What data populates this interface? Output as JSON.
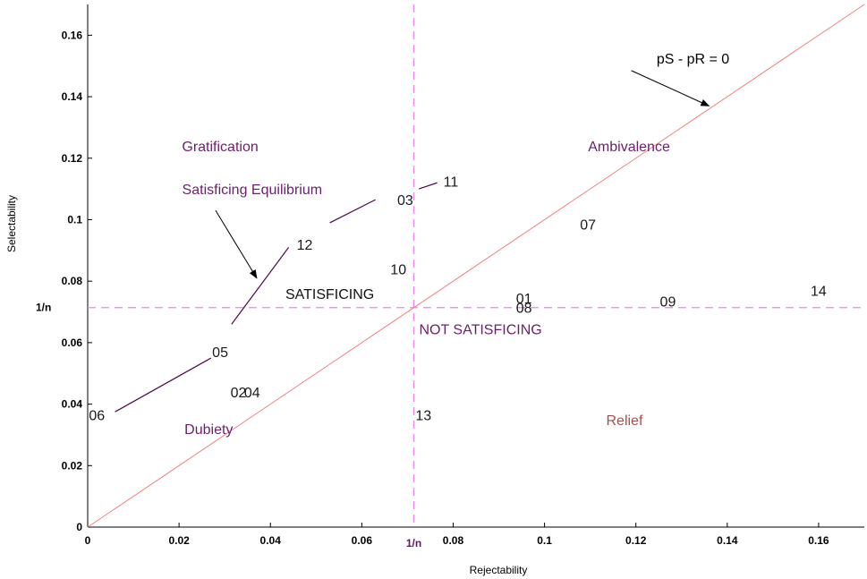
{
  "chart_data": {
    "type": "scatter",
    "xlabel": "Rejectability",
    "ylabel": "Selectability",
    "xlim": [
      0,
      0.17
    ],
    "ylim": [
      0,
      0.17
    ],
    "x_ticks": [
      "0",
      "0.02",
      "0.04",
      "0.06",
      "0.08",
      "0.1",
      "0.12",
      "0.14",
      "0.16"
    ],
    "y_ticks": [
      "0",
      "0.02",
      "0.04",
      "0.06",
      "0.08",
      "0.1",
      "0.12",
      "0.14",
      "0.16"
    ],
    "inverse_n_value": 0.0714,
    "inverse_n_label": "1/n",
    "points": [
      {
        "label": "01",
        "x": 0.0955,
        "y": 0.0745
      },
      {
        "label": "02",
        "x": 0.033,
        "y": 0.044
      },
      {
        "label": "03",
        "x": 0.0695,
        "y": 0.1065
      },
      {
        "label": "04",
        "x": 0.036,
        "y": 0.044
      },
      {
        "label": "05",
        "x": 0.029,
        "y": 0.057
      },
      {
        "label": "06",
        "x": 0.002,
        "y": 0.0365
      },
      {
        "label": "07",
        "x": 0.1095,
        "y": 0.0985
      },
      {
        "label": "08",
        "x": 0.0955,
        "y": 0.0715
      },
      {
        "label": "09",
        "x": 0.127,
        "y": 0.0735
      },
      {
        "label": "10",
        "x": 0.068,
        "y": 0.084
      },
      {
        "label": "11",
        "x": 0.0795,
        "y": 0.1125
      },
      {
        "label": "12",
        "x": 0.0475,
        "y": 0.092
      },
      {
        "label": "13",
        "x": 0.0735,
        "y": 0.0365
      },
      {
        "label": "14",
        "x": 0.16,
        "y": 0.077
      }
    ],
    "connector_segments": [
      {
        "x1": 0.006,
        "y1": 0.0375,
        "x2": 0.027,
        "y2": 0.055
      },
      {
        "x1": 0.0315,
        "y1": 0.066,
        "x2": 0.044,
        "y2": 0.091
      },
      {
        "x1": 0.053,
        "y1": 0.099,
        "x2": 0.063,
        "y2": 0.1065
      },
      {
        "x1": 0.0725,
        "y1": 0.11,
        "x2": 0.0765,
        "y2": 0.112
      }
    ],
    "diagonal_label": "pS - pR = 0",
    "region_labels": [
      {
        "text": "Gratification",
        "x": 0.029,
        "y": 0.124,
        "color": "#6b1f6b"
      },
      {
        "text": "Ambivalence",
        "x": 0.1185,
        "y": 0.124,
        "color": "#6b1f6b"
      },
      {
        "text": "Dubiety",
        "x": 0.0265,
        "y": 0.032,
        "color": "#6b1f6b"
      },
      {
        "text": "Relief",
        "x": 0.1175,
        "y": 0.035,
        "color": "#a05050"
      },
      {
        "text": "NOT SATISFICING",
        "x": 0.086,
        "y": 0.0645,
        "color": "#6b1f6b"
      }
    ],
    "satisficing_label": {
      "text": "SATISFICING",
      "x": 0.053,
      "y": 0.076
    },
    "annotations": [
      {
        "text": "pS - pR = 0",
        "tx": 0.1325,
        "ty": 0.1525,
        "ax1": 0.119,
        "ay1": 0.1485,
        "ax2": 0.136,
        "ay2": 0.137,
        "color": "#000000"
      },
      {
        "text": "Satisficing Equilibrium",
        "tx": 0.036,
        "ty": 0.11,
        "ax1": 0.028,
        "ay1": 0.103,
        "ax2": 0.037,
        "ay2": 0.081,
        "color": "#6b1f6b"
      }
    ],
    "colors": {
      "diagonal": "#f08080",
      "reference_lines": "#ee82ee",
      "connectors": "#4b0a4b",
      "region_text": "#6b1f6b",
      "relief_text": "#a05050"
    }
  }
}
